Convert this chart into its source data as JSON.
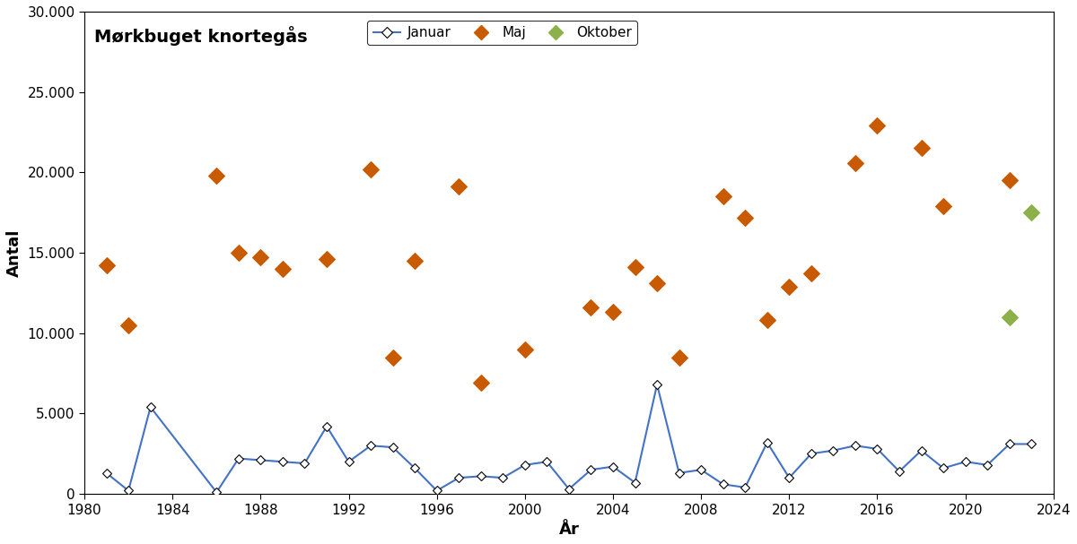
{
  "title": "Mørkbuget knortegås",
  "xlabel": "År",
  "ylabel": "Antal",
  "januar_years": [
    1981,
    1982,
    1983,
    1986,
    1987,
    1988,
    1989,
    1990,
    1991,
    1992,
    1993,
    1994,
    1995,
    1996,
    1997,
    1998,
    1999,
    2000,
    2001,
    2002,
    2003,
    2004,
    2005,
    2006,
    2007,
    2008,
    2009,
    2010,
    2011,
    2012,
    2013,
    2014,
    2015,
    2016,
    2017,
    2018,
    2019,
    2020,
    2021,
    2022,
    2023
  ],
  "januar_values": [
    1300,
    200,
    5400,
    100,
    2200,
    2100,
    2000,
    1900,
    4200,
    2000,
    3000,
    2900,
    1600,
    200,
    1000,
    1100,
    1000,
    1800,
    2000,
    300,
    1500,
    1700,
    700,
    6800,
    1300,
    1500,
    600,
    400,
    3200,
    1000,
    2500,
    2700,
    3000,
    2800,
    1400,
    2700,
    1600,
    2000,
    1800,
    3100,
    3100
  ],
  "maj_years": [
    1981,
    1982,
    1986,
    1987,
    1988,
    1989,
    1991,
    1993,
    1994,
    1995,
    1997,
    1998,
    2000,
    2003,
    2004,
    2005,
    2006,
    2007,
    2009,
    2010,
    2011,
    2012,
    2013,
    2015,
    2016,
    2018,
    2019,
    2022
  ],
  "maj_values": [
    14200,
    10500,
    19800,
    15000,
    14700,
    14000,
    14600,
    20200,
    8500,
    14500,
    19100,
    6900,
    9000,
    11600,
    11300,
    14100,
    13100,
    8500,
    18500,
    17200,
    10800,
    12900,
    13700,
    20600,
    22900,
    21500,
    17900,
    19500
  ],
  "oktober_years": [
    2022,
    2023
  ],
  "oktober_values": [
    11000,
    17500
  ],
  "jan_color": "#4472C4",
  "maj_color": "#C85A00",
  "okt_color": "#8DB04A",
  "ylim": [
    0,
    30000
  ],
  "xlim": [
    1980,
    2024
  ],
  "yticks": [
    0,
    5000,
    10000,
    15000,
    20000,
    25000,
    30000
  ],
  "xticks": [
    1980,
    1984,
    1988,
    1992,
    1996,
    2000,
    2004,
    2008,
    2012,
    2016,
    2020,
    2024
  ]
}
